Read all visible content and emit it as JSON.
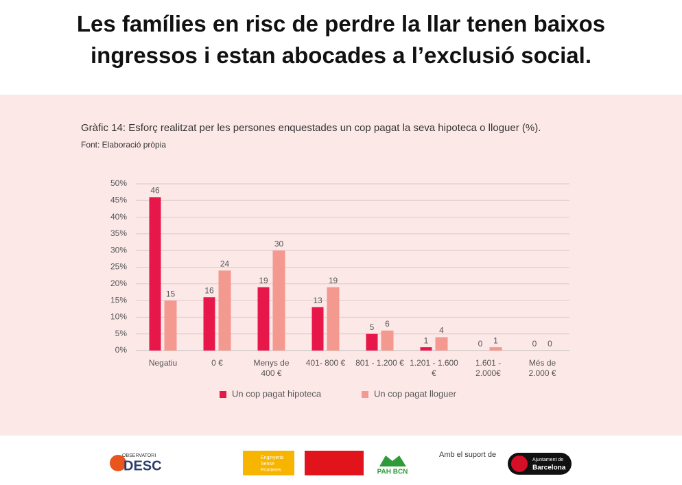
{
  "header": {
    "title": "Les famílies en risc de perdre la llar tenen baixos\ningressos i estan abocades a l’exclusió social."
  },
  "chart_data": {
    "type": "bar",
    "title": "Gràfic 14: Esforç realitzat per les persones enquestades un cop pagat la seva hipoteca o lloguer (%).",
    "subtitle": "Font: Elaboració pròpia",
    "categories": [
      "Negatiu",
      "0 €",
      "Menys de\n400 €",
      "401- 800 €",
      "801 - 1.200 €",
      "1.201 - 1.600\n€",
      "1.601 -\n2.000€",
      "Més de\n2.000 €"
    ],
    "series": [
      {
        "name": "Un cop pagat hipoteca",
        "color": "#e8174a",
        "values": [
          46,
          16,
          19,
          13,
          5,
          1,
          0,
          0
        ]
      },
      {
        "name": "Un cop pagat lloguer",
        "color": "#f4998f",
        "values": [
          15,
          24,
          30,
          19,
          6,
          4,
          1,
          0
        ]
      }
    ],
    "ylim": [
      0,
      50
    ],
    "yticks": [
      {
        "value": 0,
        "label": "0%"
      },
      {
        "value": 5,
        "label": "5%"
      },
      {
        "value": 10,
        "label": "10%"
      },
      {
        "value": 15,
        "label": "15%"
      },
      {
        "value": 20,
        "label": "20%"
      },
      {
        "value": 25,
        "label": "25%"
      },
      {
        "value": 30,
        "label": "30%"
      },
      {
        "value": 35,
        "label": "35%"
      },
      {
        "value": 40,
        "label": "40%"
      },
      {
        "value": 45,
        "label": "45%"
      },
      {
        "value": 50,
        "label": "50%"
      }
    ],
    "grid": true,
    "legend": "bottom"
  },
  "footer": {
    "logos": [
      "OBSERVATORI",
      "DESC",
      "Enginyeria Sense Fronteres",
      "PAH BCN"
    ],
    "support": "Amb el suport de",
    "city": [
      "Ajuntament de",
      "Barcelona"
    ]
  }
}
